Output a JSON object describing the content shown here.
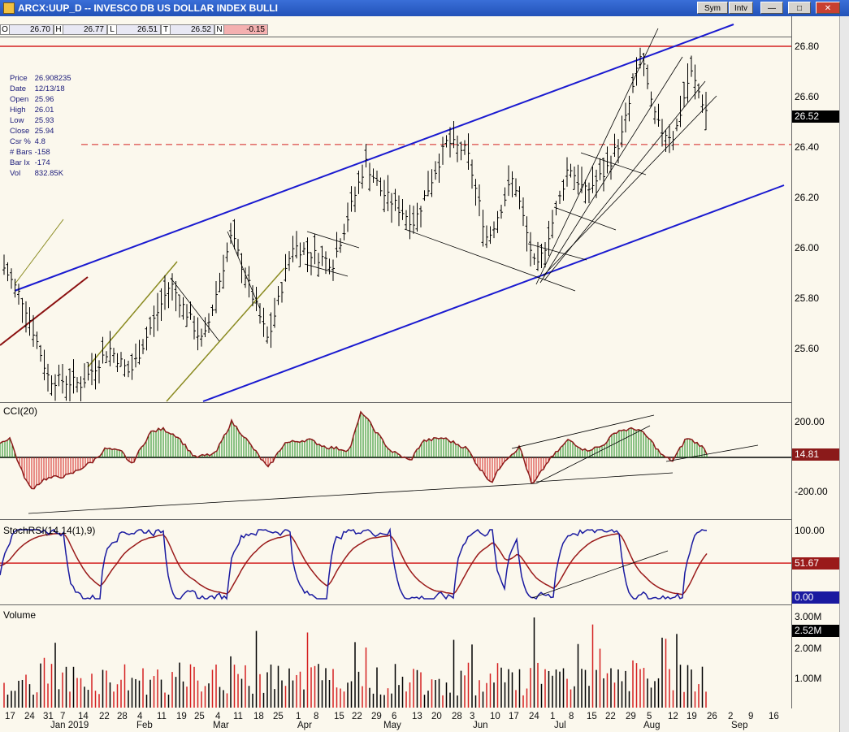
{
  "window": {
    "title": "ARCX:UUP_D -- INVESCO DB US DOLLAR INDEX BULLI",
    "sym_button": "Sym",
    "intv_button": "Intv"
  },
  "ohlc_bar": {
    "open_label": "O",
    "open": "26.70",
    "high_label": "H",
    "high": "26.77",
    "low_label": "L",
    "low": "26.51",
    "close_label": "T",
    "close": "26.52",
    "net_label": "N",
    "net": "-0.15"
  },
  "info_panel": {
    "price_k": "Price",
    "price": "26.908235",
    "date_k": "Date",
    "date": "12/13/18",
    "open_k": "Open",
    "open": "25.96",
    "high_k": "High",
    "high": "26.01",
    "low_k": "Low",
    "low": "25.93",
    "close_k": "Close",
    "close": "25.94",
    "csr_k": "Csr %",
    "csr": "4.8",
    "bars_k": "# Bars",
    "bars": "-158",
    "barix_k": "Bar Ix",
    "barix": "-174",
    "vol_k": "Vol",
    "vol": "832.85K"
  },
  "price_pane": {
    "ticks": [
      "26.80",
      "26.60",
      "26.40",
      "26.20",
      "26.00",
      "25.80",
      "25.60"
    ],
    "last": "26.52"
  },
  "cci_pane": {
    "label": "CCI(20)",
    "ticks": [
      "200.00",
      "-200.00"
    ],
    "last": "14.81"
  },
  "rsi_pane": {
    "label": "StochRSI(14,14(1),9)",
    "ticks": [
      "100.00",
      "0.00"
    ],
    "level": "51.67",
    "last": "0.00"
  },
  "volume_pane": {
    "label": "Volume",
    "ticks": [
      "3.00M",
      "2.00M",
      "1.00M"
    ],
    "last": "2.52M"
  },
  "x_axis": {
    "days": [
      "17",
      "24",
      "31",
      "7",
      "14",
      "22",
      "28",
      "4",
      "11",
      "19",
      "25",
      "4",
      "11",
      "18",
      "25",
      "1",
      "8",
      "15",
      "22",
      "29",
      "6",
      "13",
      "20",
      "28",
      "3",
      "10",
      "17",
      "24",
      "1",
      "8",
      "15",
      "22",
      "29",
      "5",
      "12",
      "19",
      "26",
      "2",
      "9",
      "16"
    ],
    "months": [
      "Jan 2019",
      "Feb",
      "Mar",
      "Apr",
      "May",
      "Jun",
      "Jul",
      "Aug",
      "Sep"
    ]
  },
  "colors": {
    "resistance": "#d42020",
    "channel": "#1a1ad0",
    "cci_pos": "#1a8a1a",
    "cci_neg": "#d42020",
    "cci_line": "#8b1a1a",
    "stoch_fast": "#1a1aa0",
    "stoch_slow": "#9a1a1a",
    "vol_up": "#000000",
    "vol_down": "#d42020"
  }
}
